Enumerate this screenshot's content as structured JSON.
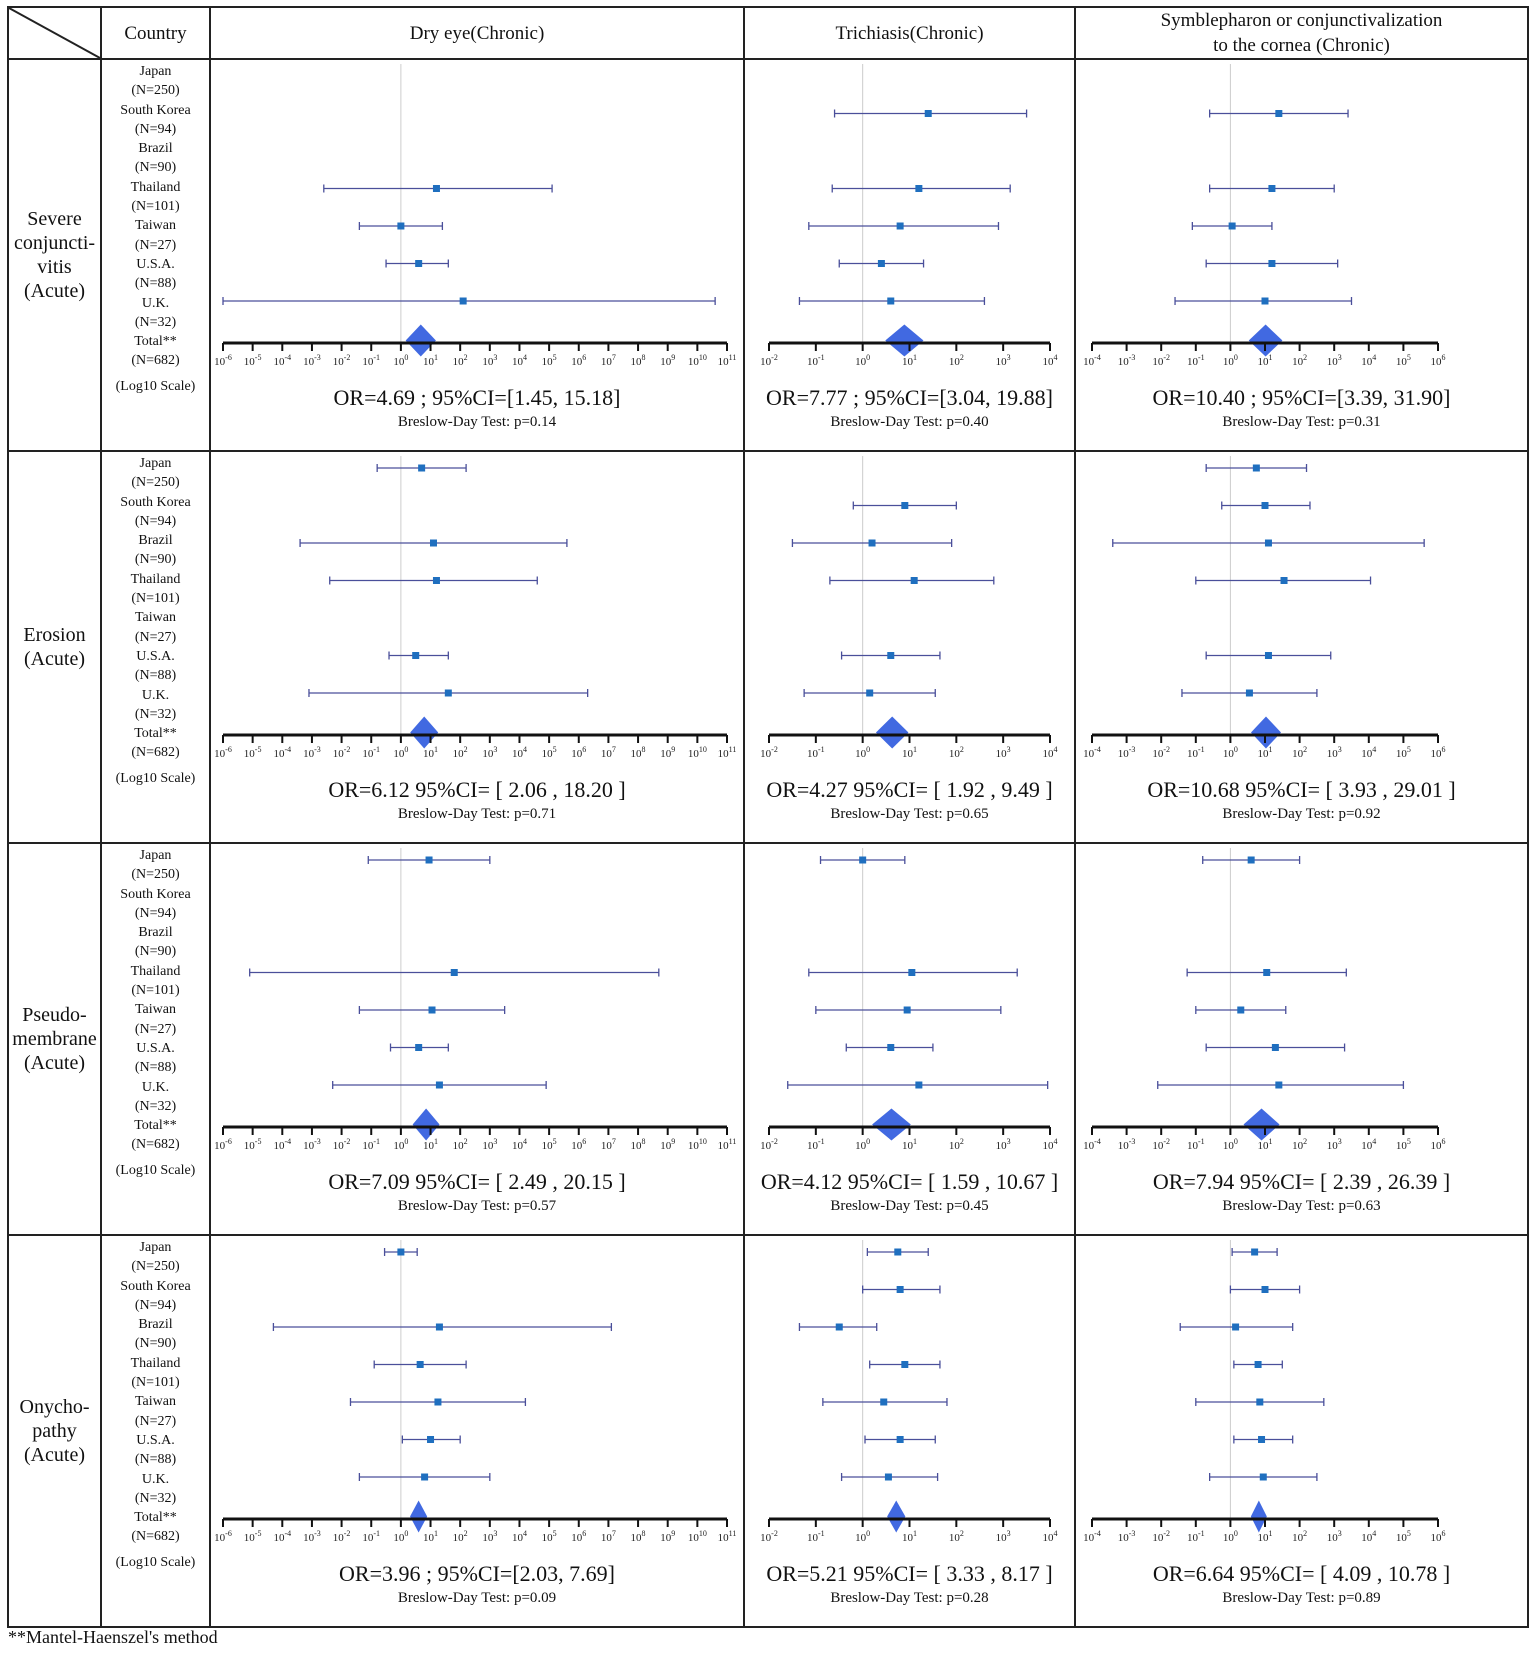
{
  "header": {
    "country_label": "Country",
    "columns": [
      "Dry eye(Chronic)",
      "Trichiasis(Chronic)",
      "Symblepharon or conjunctivalization to the cornea (Chronic)"
    ],
    "columns_lines": [
      [
        "Dry eye(Chronic)"
      ],
      [
        "Trichiasis(Chronic)"
      ],
      [
        "Symblepharon or conjunctivalization",
        "to the cornea (Chronic)"
      ]
    ]
  },
  "countries": [
    "Japan",
    "(N=250)",
    "South Korea",
    "(N=94)",
    "Brazil",
    "(N=90)",
    "Thailand",
    "(N=101)",
    "Taiwan",
    "(N=27)",
    "U.S.A.",
    "(N=88)",
    "U.K.",
    "(N=32)",
    "Total**",
    "(N=682)"
  ],
  "scale_label": "(Log10 Scale)",
  "footnote": "**Mantel-Haenszel's method",
  "colors": {
    "marker": "#1f6fbf",
    "ci_line": "#4a4f9a",
    "diamond": "#4169e1",
    "refline": "#cccccc"
  },
  "chart_data": {
    "type": "forest",
    "scale": "log10",
    "study_labels": [
      "Japan (N=250)",
      "South Korea (N=94)",
      "Brazil (N=90)",
      "Thailand (N=101)",
      "Taiwan (N=27)",
      "U.S.A. (N=88)",
      "U.K. (N=32)",
      "Total** (N=682)"
    ],
    "axes": [
      {
        "column": "Dry eye(Chronic)",
        "xlim_log10": [
          -6,
          11
        ],
        "ticks": [
          "10^-6",
          "10^-5",
          "10^-4",
          "10^-3",
          "10^-2",
          "10^-1",
          "10^0",
          "10^1",
          "10^2",
          "10^3",
          "10^4",
          "10^5",
          "10^6",
          "10^7",
          "10^8",
          "10^9",
          "10^10",
          "10^11"
        ]
      },
      {
        "column": "Trichiasis(Chronic)",
        "xlim_log10": [
          -2,
          4
        ],
        "ticks": [
          "10^-2",
          "10^-1",
          "10^0",
          "10^1",
          "10^2",
          "10^3",
          "10^4"
        ]
      },
      {
        "column": "Symblepharon or conjunctivalization to the cornea (Chronic)",
        "xlim_log10": [
          -4,
          6
        ],
        "ticks": [
          "10^-4",
          "10^-3",
          "10^-2",
          "10^-1",
          "10^0",
          "10^1",
          "10^2",
          "10^3",
          "10^4",
          "10^5",
          "10^6"
        ]
      }
    ],
    "note": "Per-study values are log10(OR) estimates [lower, point, upper] read from the plot; null = not shown",
    "rows": [
      {
        "label": "Severe conjuncti-vitis (Acute)",
        "label_lines": [
          "Severe",
          "conjuncti-",
          "vitis",
          "(Acute)"
        ],
        "panels": [
          {
            "studies": [
              null,
              null,
              null,
              [
                -2.6,
                1.2,
                5.1
              ],
              [
                -1.4,
                0.0,
                1.4
              ],
              [
                -0.5,
                0.6,
                1.6
              ],
              [
                -6.0,
                2.1,
                10.6
              ]
            ],
            "total": {
              "or": 4.69,
              "ci": [
                1.45,
                15.18
              ]
            },
            "stat_text": "OR=4.69 ; 95%CI=[1.45, 15.18]",
            "breslow": "Breslow-Day Test: p=0.14"
          },
          {
            "studies": [
              null,
              [
                -0.6,
                1.4,
                3.5
              ],
              null,
              [
                -0.65,
                1.2,
                3.15
              ],
              [
                -1.15,
                0.8,
                2.9
              ],
              [
                -0.5,
                0.4,
                1.3
              ],
              [
                -1.35,
                0.6,
                2.6
              ]
            ],
            "total": {
              "or": 7.77,
              "ci": [
                3.04,
                19.88
              ]
            },
            "stat_text": "OR=7.77 ; 95%CI=[3.04, 19.88]",
            "breslow": "Breslow-Day Test: p=0.40"
          },
          {
            "studies": [
              null,
              [
                -0.6,
                1.4,
                3.4
              ],
              null,
              [
                -0.6,
                1.2,
                3.0
              ],
              [
                -1.1,
                0.05,
                1.2
              ],
              [
                -0.7,
                1.2,
                3.1
              ],
              [
                -1.6,
                1.0,
                3.5
              ]
            ],
            "total": {
              "or": 10.4,
              "ci": [
                3.39,
                31.9
              ]
            },
            "stat_text": "OR=10.40 ; 95%CI=[3.39, 31.90]",
            "breslow": "Breslow-Day Test: p=0.31"
          }
        ]
      },
      {
        "label": "Erosion (Acute)",
        "label_lines": [
          "Erosion",
          "(Acute)"
        ],
        "panels": [
          {
            "studies": [
              [
                -0.8,
                0.7,
                2.2
              ],
              null,
              [
                -3.4,
                1.1,
                5.6
              ],
              [
                -2.4,
                1.2,
                4.6
              ],
              null,
              [
                -0.4,
                0.5,
                1.6
              ],
              [
                -3.1,
                1.6,
                6.3
              ]
            ],
            "total": {
              "or": 6.12,
              "ci": [
                2.06,
                18.2
              ]
            },
            "stat_text": "OR=6.12  95%CI= [ 2.06 , 18.20 ]",
            "breslow": "Breslow-Day Test: p=0.71"
          },
          {
            "studies": [
              null,
              [
                -0.2,
                0.9,
                2.0
              ],
              [
                -1.5,
                0.2,
                1.9
              ],
              [
                -0.7,
                1.1,
                2.8
              ],
              null,
              [
                -0.45,
                0.6,
                1.65
              ],
              [
                -1.25,
                0.15,
                1.55
              ]
            ],
            "total": {
              "or": 4.27,
              "ci": [
                1.92,
                9.49
              ]
            },
            "stat_text": "OR=4.27  95%CI= [ 1.92 , 9.49 ]",
            "breslow": "Breslow-Day Test: p=0.65"
          },
          {
            "studies": [
              [
                -0.7,
                0.75,
                2.2
              ],
              [
                -0.25,
                1.0,
                2.3
              ],
              [
                -3.4,
                1.1,
                5.6
              ],
              [
                -1.0,
                1.55,
                4.05
              ],
              null,
              [
                -0.7,
                1.1,
                2.9
              ],
              [
                -1.4,
                0.55,
                2.5
              ]
            ],
            "total": {
              "or": 10.68,
              "ci": [
                3.93,
                29.01
              ]
            },
            "stat_text": "OR=10.68  95%CI= [ 3.93 , 29.01 ]",
            "breslow": "Breslow-Day Test: p=0.92"
          }
        ]
      },
      {
        "label": "Pseudo-membrane (Acute)",
        "label_lines": [
          "Pseudo-",
          "membrane",
          "(Acute)"
        ],
        "panels": [
          {
            "studies": [
              [
                -1.1,
                0.95,
                3.0
              ],
              null,
              null,
              [
                -5.1,
                1.8,
                8.7
              ],
              [
                -1.4,
                1.05,
                3.5
              ],
              [
                -0.35,
                0.6,
                1.6
              ],
              [
                -2.3,
                1.3,
                4.9
              ]
            ],
            "total": {
              "or": 7.09,
              "ci": [
                2.49,
                20.15
              ]
            },
            "stat_text": "OR=7.09  95%CI= [ 2.49 , 20.15 ]",
            "breslow": "Breslow-Day Test: p=0.57"
          },
          {
            "studies": [
              [
                -0.9,
                0.0,
                0.9
              ],
              null,
              null,
              [
                -1.15,
                1.05,
                3.3
              ],
              [
                -1.0,
                0.95,
                2.95
              ],
              [
                -0.35,
                0.6,
                1.5
              ],
              [
                -1.6,
                1.2,
                3.95
              ]
            ],
            "total": {
              "or": 4.12,
              "ci": [
                1.59,
                10.67
              ]
            },
            "stat_text": "OR=4.12  95%CI= [ 1.59 , 10.67 ]",
            "breslow": "Breslow-Day Test: p=0.45"
          },
          {
            "studies": [
              [
                -0.8,
                0.6,
                2.0
              ],
              null,
              null,
              [
                -1.25,
                1.05,
                3.35
              ],
              [
                -1.0,
                0.3,
                1.6
              ],
              [
                -0.7,
                1.3,
                3.3
              ],
              [
                -2.1,
                1.4,
                5.0
              ]
            ],
            "total": {
              "or": 7.94,
              "ci": [
                2.39,
                26.39
              ]
            },
            "stat_text": "OR=7.94  95%CI= [ 2.39 , 26.39 ]",
            "breslow": "Breslow-Day Test: p=0.63"
          }
        ]
      },
      {
        "label": "Onycho-pathy (Acute)",
        "label_lines": [
          "Onycho-",
          "pathy",
          "(Acute)"
        ],
        "panels": [
          {
            "studies": [
              [
                -0.55,
                0.0,
                0.55
              ],
              null,
              [
                -4.3,
                1.3,
                7.1
              ],
              [
                -0.9,
                0.65,
                2.2
              ],
              [
                -1.7,
                1.25,
                4.2
              ],
              [
                0.05,
                1.0,
                2.0
              ],
              [
                -1.4,
                0.8,
                3.0
              ]
            ],
            "total": {
              "or": 3.96,
              "ci": [
                2.03,
                7.69
              ]
            },
            "stat_text": "OR=3.96 ; 95%CI=[2.03, 7.69]",
            "breslow": "Breslow-Day Test: p=0.09"
          },
          {
            "studies": [
              [
                0.1,
                0.75,
                1.4
              ],
              [
                0.0,
                0.8,
                1.65
              ],
              [
                -1.35,
                -0.5,
                0.3
              ],
              [
                0.15,
                0.9,
                1.65
              ],
              [
                -0.85,
                0.45,
                1.8
              ],
              [
                0.05,
                0.8,
                1.55
              ],
              [
                -0.45,
                0.55,
                1.6
              ]
            ],
            "total": {
              "or": 5.21,
              "ci": [
                3.33,
                8.17
              ]
            },
            "stat_text": "OR=5.21  95%CI= [ 3.33 , 8.17 ]",
            "breslow": "Breslow-Day Test: p=0.28"
          },
          {
            "studies": [
              [
                0.05,
                0.7,
                1.35
              ],
              [
                0.0,
                1.0,
                2.0
              ],
              [
                -1.45,
                0.15,
                1.8
              ],
              [
                0.1,
                0.8,
                1.5
              ],
              [
                -1.0,
                0.85,
                2.7
              ],
              [
                0.1,
                0.9,
                1.8
              ],
              [
                -0.6,
                0.95,
                2.5
              ]
            ],
            "total": {
              "or": 6.64,
              "ci": [
                4.09,
                10.78
              ]
            },
            "stat_text": "OR=6.64  95%CI= [ 4.09 , 10.78 ]",
            "breslow": "Breslow-Day Test: p=0.89"
          }
        ]
      }
    ]
  }
}
